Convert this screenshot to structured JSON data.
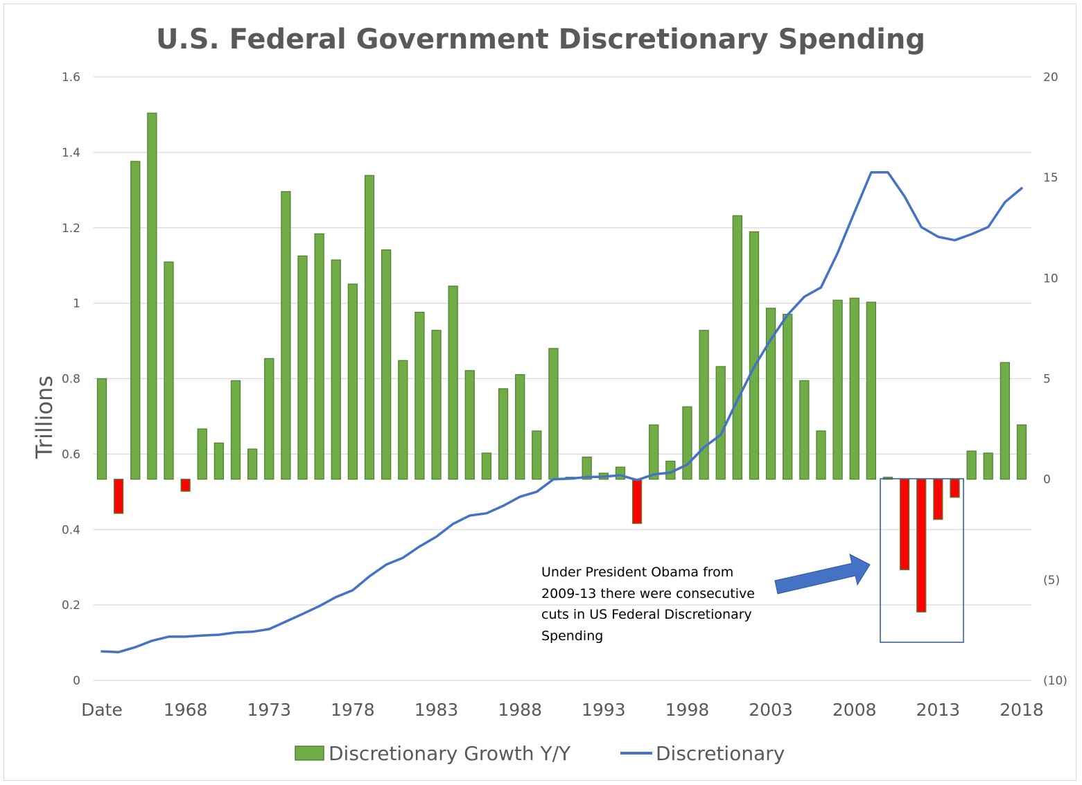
{
  "chart_data": {
    "type": "bar+line",
    "title": "U.S. Federal Government Discretionary Spending",
    "ylabel": "Trillions",
    "ylim_left": [
      0,
      1.6
    ],
    "ylim_right": [
      -10,
      20
    ],
    "left_ticks": [
      "0",
      "0.2",
      "0.4",
      "0.6",
      "0.8",
      "1",
      "1.2",
      "1.4",
      "1.6"
    ],
    "right_ticks": [
      "(10)",
      "(5)",
      "0",
      "5",
      "10",
      "15",
      "20"
    ],
    "x_tick_labels": [
      "Date",
      "1968",
      "1973",
      "1978",
      "1983",
      "1988",
      "1993",
      "1998",
      "2003",
      "2008",
      "2013",
      "2018"
    ],
    "categories": [
      "Date",
      "1964",
      "1965",
      "1966",
      "1967",
      "1968",
      "1969",
      "1970",
      "1971",
      "1972",
      "1973",
      "1974",
      "1975",
      "1976",
      "1977",
      "1978",
      "1979",
      "1980",
      "1981",
      "1982",
      "1983",
      "1984",
      "1985",
      "1986",
      "1987",
      "1988",
      "1989",
      "1990",
      "1991",
      "1992",
      "1993",
      "1994",
      "1995",
      "1996",
      "1997",
      "1998",
      "1999",
      "2000",
      "2001",
      "2002",
      "2003",
      "2004",
      "2005",
      "2006",
      "2007",
      "2008",
      "2009",
      "2010",
      "2011",
      "2012",
      "2013",
      "2014",
      "2015",
      "2016",
      "2017",
      "2018"
    ],
    "grid": true,
    "legend_position": "bottom",
    "series": [
      {
        "name": "Discretionary Growth Y/Y",
        "type": "bar",
        "axis": "right",
        "color": "#70ad47",
        "negative_color": "#ff0000",
        "values": [
          5.0,
          -1.7,
          15.8,
          18.2,
          10.8,
          -0.6,
          2.5,
          1.8,
          4.9,
          1.5,
          6.0,
          14.3,
          11.1,
          12.2,
          10.9,
          9.7,
          15.1,
          11.4,
          5.9,
          8.3,
          7.4,
          9.6,
          5.4,
          1.3,
          4.5,
          5.2,
          2.4,
          6.5,
          0.1,
          1.1,
          0.3,
          0.6,
          -2.2,
          2.7,
          0.9,
          3.6,
          7.4,
          5.6,
          13.1,
          12.3,
          8.5,
          8.2,
          4.9,
          2.4,
          8.9,
          9.0,
          8.8,
          0.1,
          -4.5,
          -6.6,
          -2.0,
          -0.9,
          1.4,
          1.3,
          5.8,
          2.7
        ]
      },
      {
        "name": "Discretionary",
        "type": "line",
        "axis": "left",
        "color": "#4472c4",
        "values": [
          0.077,
          0.075,
          0.088,
          0.105,
          0.116,
          0.116,
          0.119,
          0.121,
          0.127,
          0.129,
          0.136,
          0.156,
          0.176,
          0.197,
          0.221,
          0.239,
          0.276,
          0.307,
          0.325,
          0.355,
          0.381,
          0.415,
          0.437,
          0.443,
          0.463,
          0.487,
          0.5,
          0.533,
          0.535,
          0.539,
          0.54,
          0.544,
          0.531,
          0.546,
          0.551,
          0.572,
          0.618,
          0.651,
          0.743,
          0.831,
          0.904,
          0.969,
          1.017,
          1.042,
          1.134,
          1.241,
          1.347,
          1.347,
          1.283,
          1.202,
          1.176,
          1.167,
          1.183,
          1.202,
          1.268,
          1.305
        ]
      }
    ],
    "annotation": {
      "lines": [
        "Under President Obama from",
        "2009-13 there were consecutive",
        "cuts in US Federal Discretionary",
        "Spending"
      ],
      "arrow_color": "#4472c4",
      "box_color": "#2f5597"
    }
  }
}
